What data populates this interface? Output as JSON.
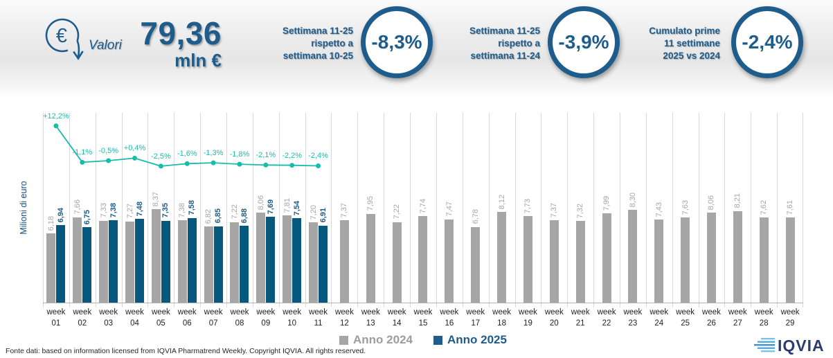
{
  "header": {
    "euro_symbol": "€",
    "icon_label": "Valori",
    "total_value": "79,36",
    "total_unit": "mln €",
    "kpis": [
      {
        "label": "Settimana 11-25\nrispetto a\nsettimana 10-25",
        "value": "-8,3%"
      },
      {
        "label": "Settimana 11-25\nrispetto a\nsettimana 11-24",
        "value": "-3,9%"
      },
      {
        "label": "Cumulato prime\n11 settimane\n2025 vs 2024",
        "value": "-2,4%"
      }
    ]
  },
  "chart_data": {
    "type": "bar+line",
    "ylabel": "Milioni di euro",
    "ylim": [
      0,
      17
    ],
    "grid": "vertical",
    "categories": [
      "week 01",
      "week 02",
      "week 03",
      "week 04",
      "week 05",
      "week 06",
      "week 07",
      "week 08",
      "week 09",
      "week 10",
      "week 11",
      "week 12",
      "week 13",
      "week 14",
      "week 15",
      "week 16",
      "week 17",
      "week 18",
      "week 19",
      "week 20",
      "week 21",
      "week 22",
      "week 23",
      "week 24",
      "week 25",
      "week 26",
      "week 27",
      "week 28",
      "week 29"
    ],
    "series": [
      {
        "name": "Anno 2024",
        "color": "#a6a6a6",
        "values": [
          6.18,
          7.66,
          7.33,
          7.27,
          8.37,
          7.38,
          6.82,
          7.22,
          8.06,
          7.81,
          7.2,
          7.37,
          7.95,
          7.22,
          7.74,
          7.47,
          6.78,
          8.12,
          7.73,
          7.37,
          7.32,
          7.99,
          8.3,
          7.43,
          7.63,
          8.06,
          8.21,
          7.62,
          7.61
        ]
      },
      {
        "name": "Anno 2025",
        "color": "#07587f",
        "values": [
          6.94,
          6.75,
          7.38,
          7.48,
          7.35,
          7.58,
          6.85,
          6.88,
          7.69,
          7.54,
          6.91
        ]
      }
    ],
    "line": {
      "color": "#17bdab",
      "values": [
        12.2,
        -1.1,
        -0.5,
        0.4,
        -2.5,
        -1.6,
        -1.3,
        -1.8,
        -2.1,
        -2.2,
        -2.4
      ],
      "labels": [
        "+12,2%",
        "-1,1%",
        "-0,5%",
        "+0,4%",
        "-2,5%",
        "-1,6%",
        "-1,3%",
        "-1,8%",
        "-2,1%",
        "-2,2%",
        "-2,4%"
      ]
    },
    "legend_position": "bottom"
  },
  "legend": [
    {
      "label": "Anno 2024",
      "color": "#a6a6a6",
      "text_color": "#9d9d9d"
    },
    {
      "label": "Anno 2025",
      "color": "#1f5c8c",
      "text_color": "#1f5c8c"
    }
  ],
  "footer": {
    "source": "Fonte dati: based on information licensed from IQVIA Pharmatrend Weekly. Copyright IQVIA. All rights reserved.",
    "logo": "IQVIA"
  }
}
